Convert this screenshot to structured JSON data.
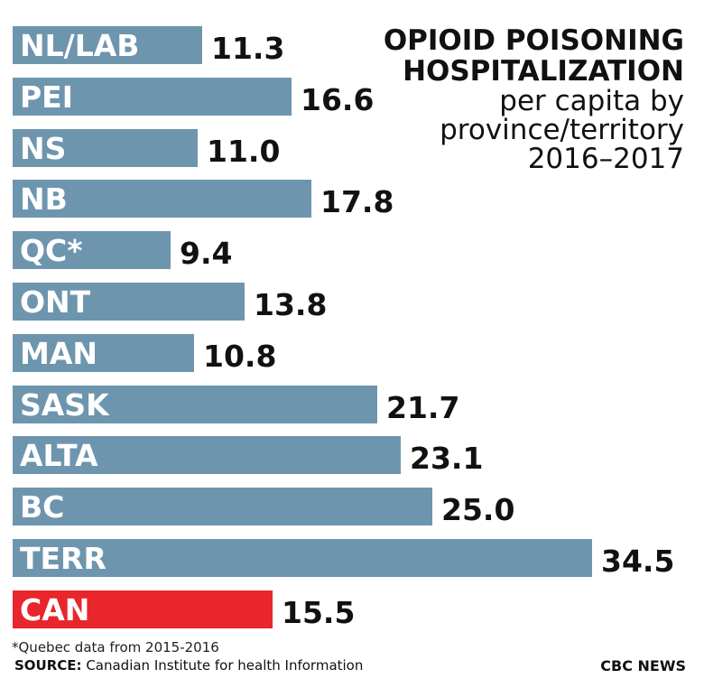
{
  "chart_data": {
    "type": "bar",
    "orientation": "horizontal",
    "title": "OPIOID POISONING HOSPITALIZATION",
    "title_lines": [
      "OPIOID POISONING",
      "HOSPITALIZATION"
    ],
    "subtitle_lines": [
      "per capita by",
      "province/territory",
      "2016–2017"
    ],
    "categories": [
      "NL/LAB",
      "PEI",
      "NS",
      "NB",
      "QC*",
      "ONT",
      "MAN",
      "SASK",
      "ALTA",
      "BC",
      "TERR",
      "CAN"
    ],
    "values": [
      11.3,
      16.6,
      11.0,
      17.8,
      9.4,
      13.8,
      10.8,
      21.7,
      23.1,
      25.0,
      34.5,
      15.5
    ],
    "value_labels": [
      "11.3",
      "16.6",
      "11.0",
      "17.8",
      "9.4",
      "13.8",
      "10.8",
      "21.7",
      "23.1",
      "25.0",
      "34.5",
      "15.5"
    ],
    "highlight_category": "CAN",
    "bar_color": "#6e95ae",
    "highlight_color": "#e8262b",
    "xlim": [
      0,
      34.5
    ],
    "grid": false,
    "legend": "none",
    "footnote": "*Quebec data from 2015-2016",
    "source_label": "SOURCE:",
    "source_text": " Canadian Institute for health Information",
    "brand": "CBC NEWS"
  }
}
